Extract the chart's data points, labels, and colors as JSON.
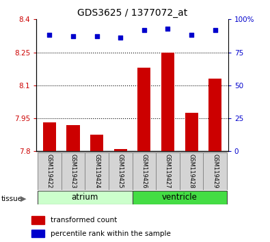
{
  "title": "GDS3625 / 1377072_at",
  "samples": [
    "GSM119422",
    "GSM119423",
    "GSM119424",
    "GSM119425",
    "GSM119426",
    "GSM119427",
    "GSM119428",
    "GSM119429"
  ],
  "bar_values": [
    7.93,
    7.92,
    7.875,
    7.81,
    8.18,
    8.25,
    7.975,
    8.13
  ],
  "percentile_values": [
    88,
    87,
    87,
    86,
    92,
    93,
    88,
    92
  ],
  "ylim_left": [
    7.8,
    8.4
  ],
  "ylim_right": [
    0,
    100
  ],
  "yticks_left": [
    7.8,
    7.95,
    8.1,
    8.25,
    8.4
  ],
  "yticks_right": [
    0,
    25,
    50,
    75,
    100
  ],
  "yticklabels_left": [
    "7.8",
    "7.95",
    "8.1",
    "8.25",
    "8.4"
  ],
  "yticklabels_right": [
    "0",
    "25",
    "50",
    "75",
    "100%"
  ],
  "bar_color": "#cc0000",
  "dot_color": "#0000cc",
  "bar_bottom": 7.8,
  "groups": [
    {
      "label": "atrium",
      "start": 0,
      "end": 3,
      "color": "#ccffcc"
    },
    {
      "label": "ventricle",
      "start": 4,
      "end": 7,
      "color": "#44dd44"
    }
  ],
  "tissue_label": "tissue",
  "legend_items": [
    {
      "label": "transformed count",
      "color": "#cc0000"
    },
    {
      "label": "percentile rank within the sample",
      "color": "#0000cc"
    }
  ],
  "tick_label_color_left": "#cc0000",
  "tick_label_color_right": "#0000cc"
}
